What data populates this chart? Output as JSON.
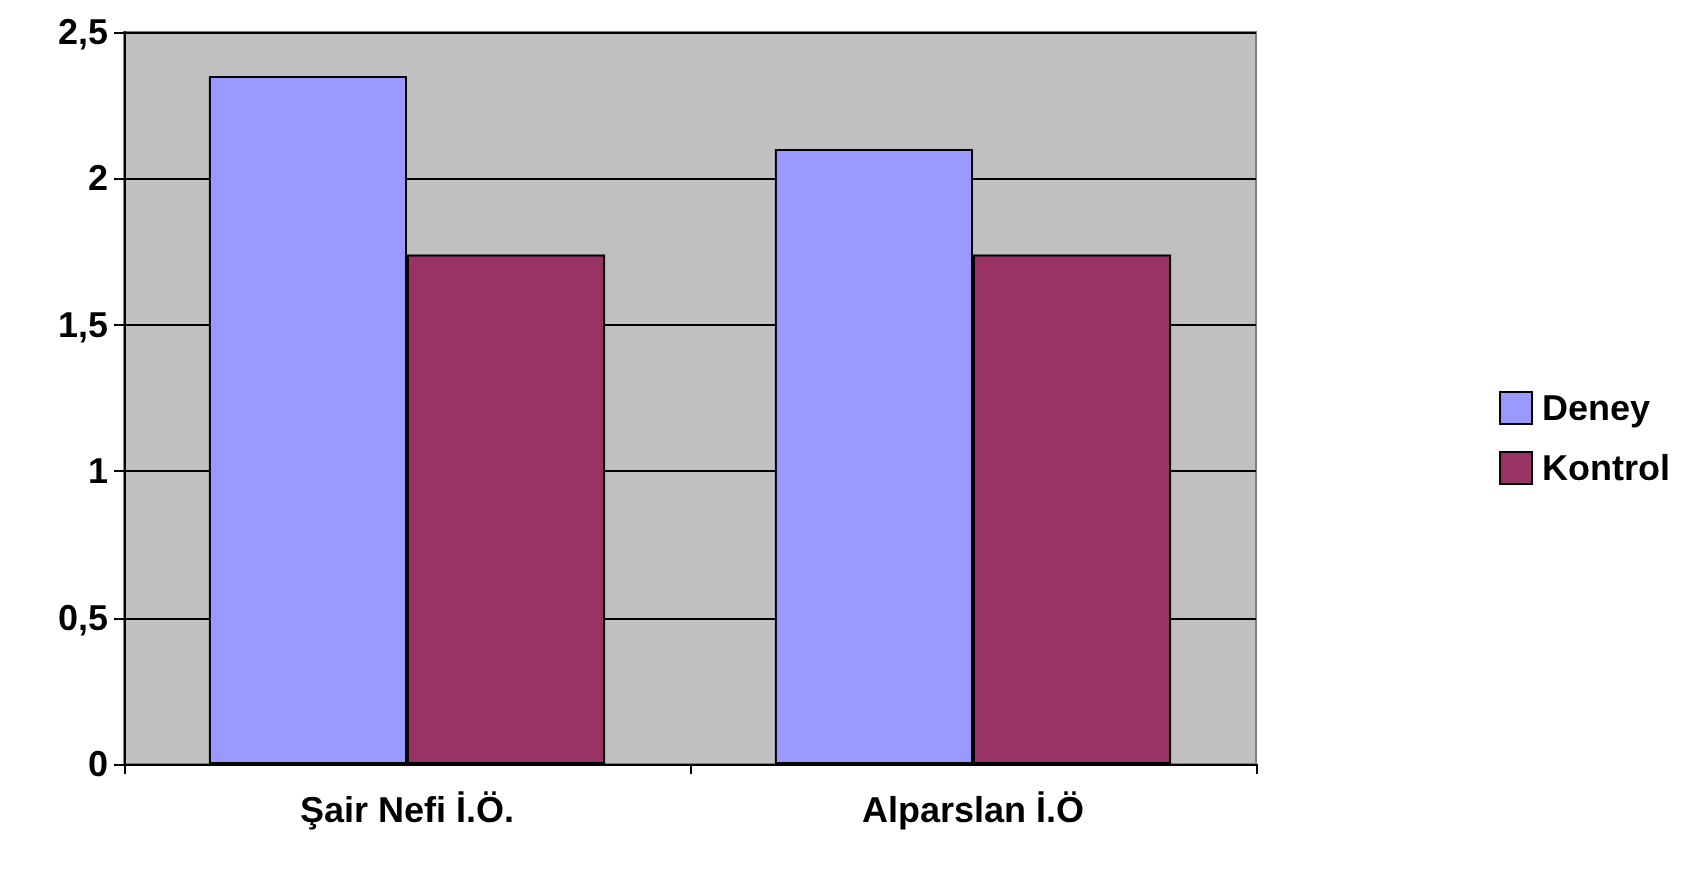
{
  "chart_data": {
    "type": "bar",
    "categories": [
      "Şair Nefi İ.Ö.",
      "Alparslan İ.Ö"
    ],
    "series": [
      {
        "name": "Deney",
        "color": "#9999ff",
        "values": [
          2.35,
          2.1
        ]
      },
      {
        "name": "Kontrol",
        "color": "#993366",
        "values": [
          1.74,
          1.74
        ]
      }
    ],
    "ylim": [
      0,
      2.5
    ],
    "yticks": [
      0,
      {
        "value": 0.5,
        "label": "0,5"
      },
      1,
      {
        "value": 1.5,
        "label": "1,5"
      },
      2,
      {
        "value": 2.5,
        "label": "2,5"
      }
    ],
    "grid": "y",
    "legend": "right"
  }
}
